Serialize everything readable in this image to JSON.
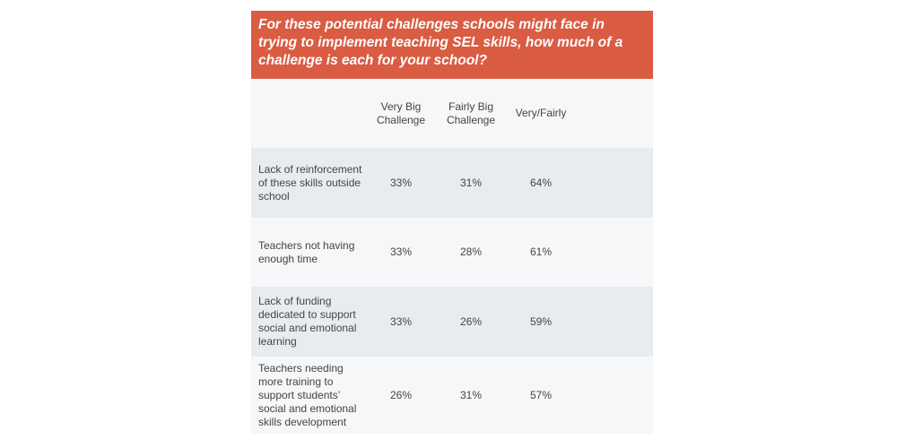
{
  "header": {
    "title": "For these potential challenges schools might face in trying to implement teaching SEL skills, how much of a challenge is each for your school?"
  },
  "table": {
    "columns": [
      "Very Big Challenge",
      "Fairly Big Challenge",
      "Very/Fairly"
    ],
    "rows": [
      {
        "label": "Lack of reinforcement of these skills outside school",
        "cells": [
          "33%",
          "31%",
          "64%"
        ]
      },
      {
        "label": "Teachers not having enough time",
        "cells": [
          "33%",
          "28%",
          "61%"
        ]
      },
      {
        "label": "Lack of funding dedicated to support social and emotional learning",
        "cells": [
          "33%",
          "26%",
          "59%"
        ]
      },
      {
        "label": "Teachers needing more training to support students’ social and emotional skills development",
        "cells": [
          "26%",
          "31%",
          "57%"
        ]
      }
    ]
  }
}
